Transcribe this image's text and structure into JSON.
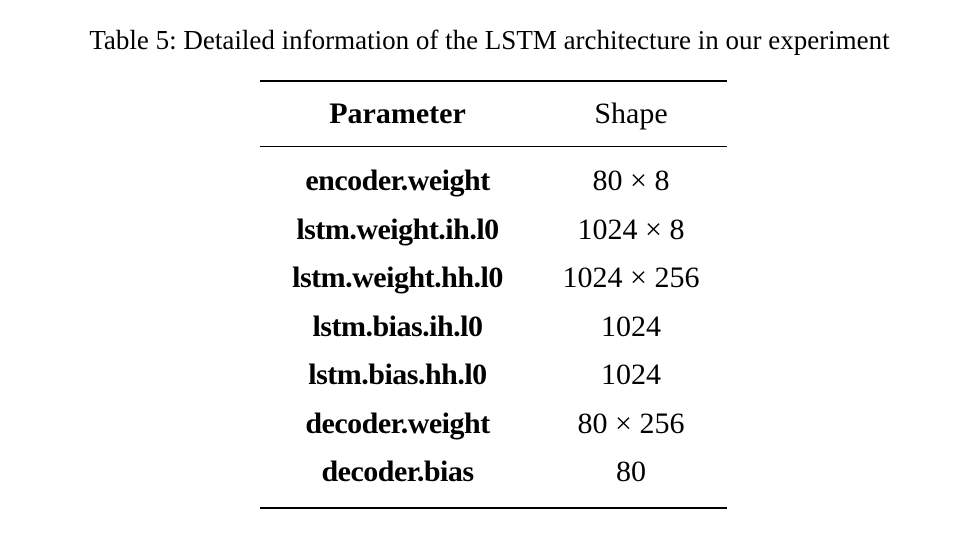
{
  "caption": "Table 5: Detailed information of the LSTM architecture in our experiment",
  "table": {
    "headers": [
      "Parameter",
      "Shape"
    ],
    "rows": [
      {
        "parameter": "encoder.weight",
        "shape": "80 × 8"
      },
      {
        "parameter": "lstm.weight.ih.l0",
        "shape": "1024 × 8"
      },
      {
        "parameter": "lstm.weight.hh.l0",
        "shape": "1024 × 256"
      },
      {
        "parameter": "lstm.bias.ih.l0",
        "shape": "1024"
      },
      {
        "parameter": "lstm.bias.hh.l0",
        "shape": "1024"
      },
      {
        "parameter": "decoder.weight",
        "shape": "80 × 256"
      },
      {
        "parameter": "decoder.bias",
        "shape": "80"
      }
    ]
  }
}
